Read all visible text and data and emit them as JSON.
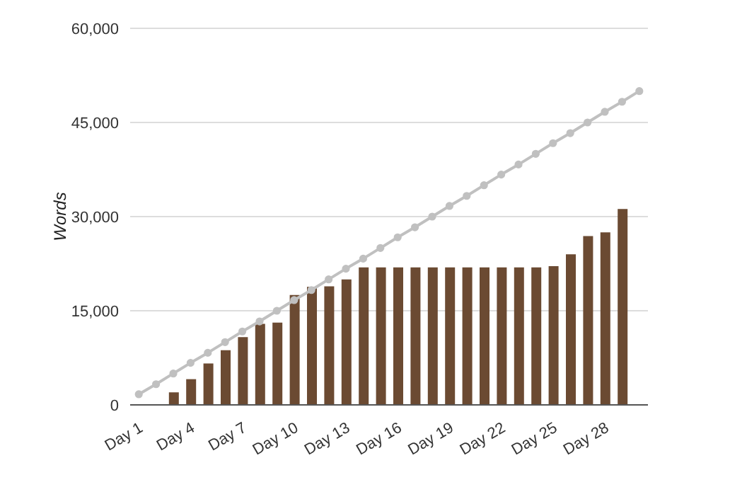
{
  "chart_data": {
    "type": "bar",
    "ylabel": "Words",
    "categories": [
      "Day 1",
      null,
      null,
      "Day 4",
      null,
      null,
      "Day 7",
      null,
      null,
      "Day 10",
      null,
      null,
      "Day 13",
      null,
      null,
      "Day 16",
      null,
      null,
      "Day 19",
      null,
      null,
      "Day 22",
      null,
      null,
      "Day 25",
      null,
      null,
      "Day 28",
      null,
      null
    ],
    "series": [
      {
        "color": "#6b4a32",
        "values": [
          0,
          0,
          2000,
          4100,
          6600,
          8700,
          10800,
          12900,
          13100,
          17500,
          18800,
          18900,
          20000,
          21900,
          21900,
          21900,
          21900,
          21900,
          21900,
          21900,
          21900,
          21900,
          21900,
          21900,
          22100,
          24000,
          26900,
          27500,
          31200,
          null
        ]
      },
      {
        "type": "line",
        "color": "#c0c0c0",
        "marker": "circle",
        "values": [
          1700,
          3300,
          5000,
          6700,
          8300,
          10000,
          11700,
          13300,
          15000,
          16700,
          18300,
          20000,
          21700,
          23300,
          25000,
          26700,
          28300,
          30000,
          31700,
          33300,
          35000,
          36700,
          38300,
          40000,
          41700,
          43300,
          45000,
          46700,
          48300,
          50000
        ]
      }
    ],
    "ylim": [
      0,
      60000
    ],
    "yticks": [
      {
        "value": 0,
        "label": "0"
      },
      {
        "value": 15000,
        "label": "15,000"
      },
      {
        "value": 30000,
        "label": "30,000"
      },
      {
        "value": 45000,
        "label": "45,000"
      },
      {
        "value": 60000,
        "label": "60,000"
      }
    ],
    "grid": "y",
    "legend": false
  }
}
